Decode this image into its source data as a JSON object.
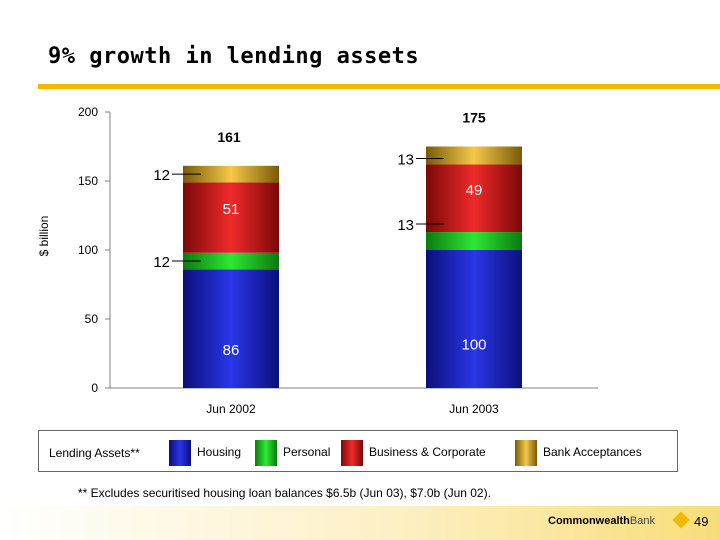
{
  "title": "9% growth in lending assets",
  "colors": {
    "accent": "#f5b800",
    "housing": "#1a23c8",
    "personal": "#14c81a",
    "business_corporate": "#d31212",
    "bank_acceptances": "#d9a21a"
  },
  "chart_data": {
    "type": "bar",
    "stacked": true,
    "categories": [
      "Jun 2002",
      "Jun 2003"
    ],
    "series": [
      {
        "name": "Housing",
        "values": [
          86,
          100
        ]
      },
      {
        "name": "Personal",
        "values": [
          12,
          13
        ]
      },
      {
        "name": "Business & Corporate",
        "values": [
          51,
          49
        ]
      },
      {
        "name": "Bank Acceptances",
        "values": [
          12,
          13
        ]
      }
    ],
    "totals": [
      "161",
      "175"
    ],
    "segment_labels": [
      [
        "86",
        "12",
        "51",
        "12"
      ],
      [
        "100",
        "13",
        "49",
        "13"
      ]
    ],
    "ylabel": "$ billion",
    "ylim": [
      0,
      200
    ],
    "yticks": [
      "0",
      "50",
      "100",
      "150",
      "200"
    ],
    "grid": false
  },
  "legend": {
    "lead": "Lending Assets**",
    "items": [
      "Housing",
      "Personal",
      "Business & Corporate",
      "Bank Acceptances"
    ]
  },
  "footnote": "** Excludes securitised housing loan balances $6.5b (Jun 03), $7.0b (Jun 02).",
  "footer": {
    "brand_bold": "Commonwealth",
    "brand_light": "Bank",
    "page_number": "49"
  }
}
